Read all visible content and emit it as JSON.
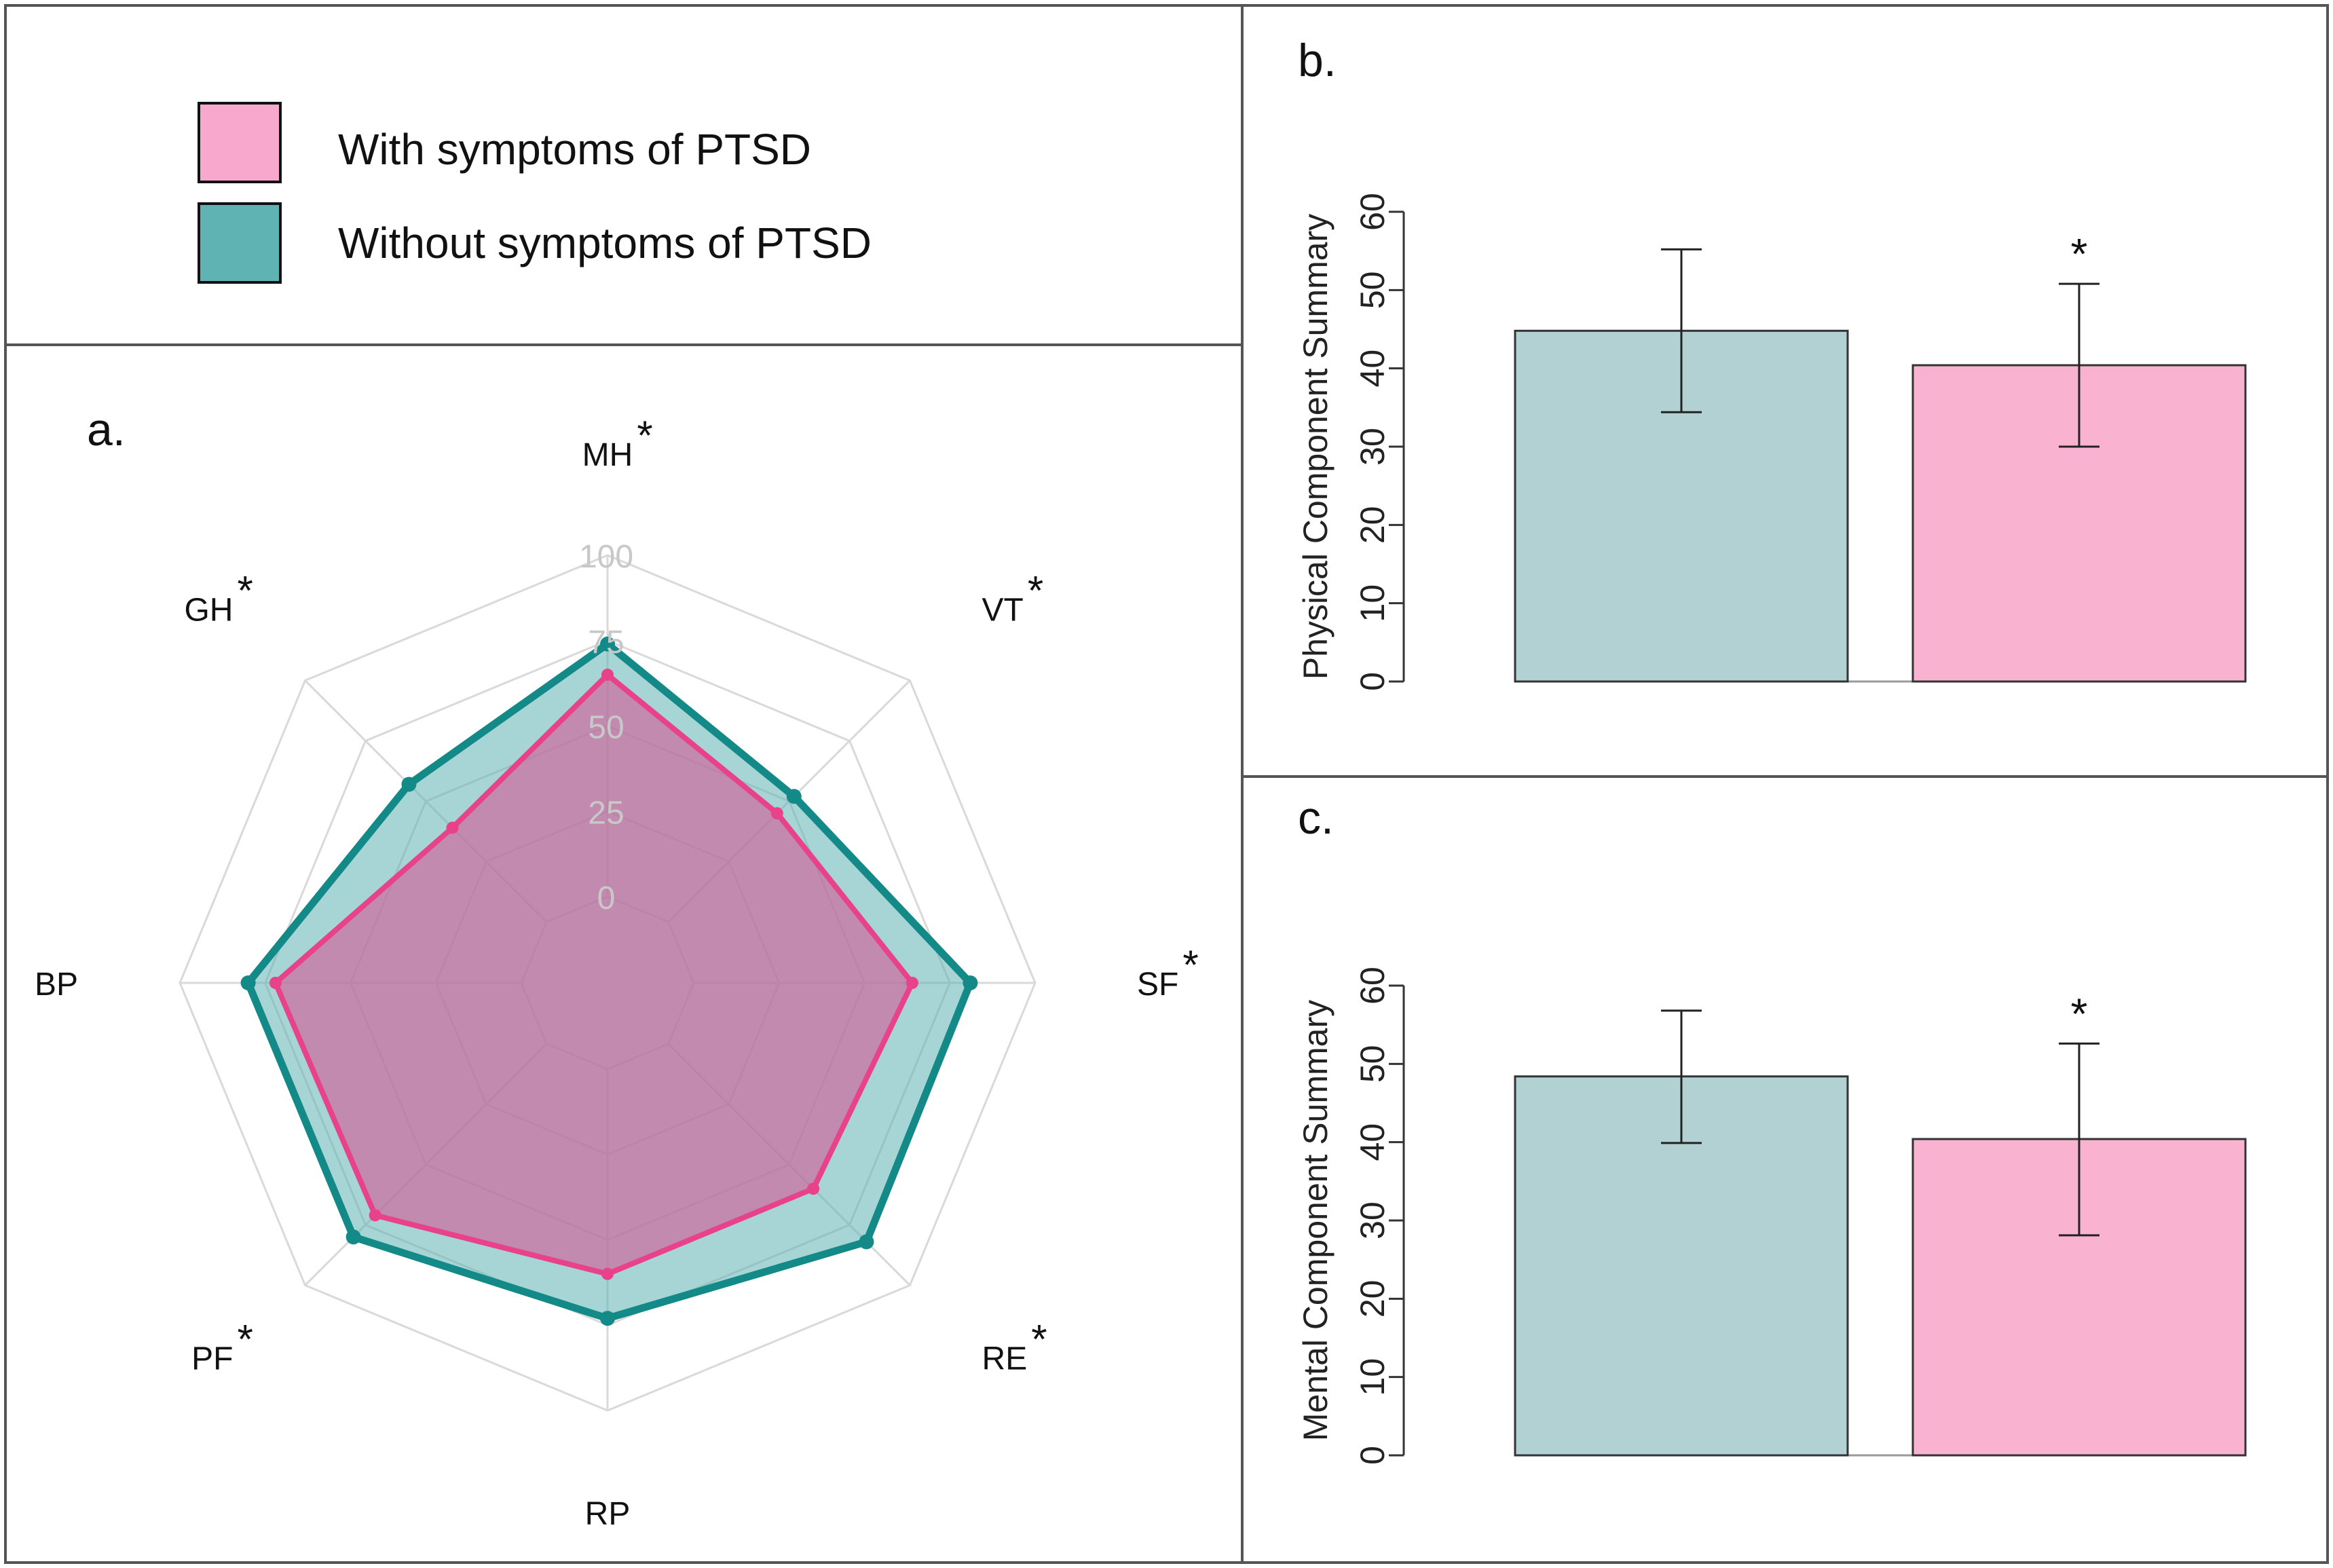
{
  "legend": {
    "entries": [
      {
        "label": "With symptoms of PTSD",
        "color": "#f7a8cc"
      },
      {
        "label": "Without symptoms of PTSD",
        "color": "#5fb3b3"
      }
    ]
  },
  "colors": {
    "ptsd_fill": "#d25c96",
    "ptsd_line": "#e8428a",
    "no_ptsd_fill": "#5fb3b3",
    "no_ptsd_line": "#138a87",
    "bar_no_ptsd": "#b2d1d2",
    "bar_ptsd": "#f9b3d1",
    "grid": "#d9d9d9"
  },
  "chart_data": [
    {
      "type": "radar",
      "panel_label": "a.",
      "axes": [
        "MH",
        "VT",
        "SF",
        "RE",
        "RP",
        "PF",
        "BP",
        "GH"
      ],
      "significant": [
        "*",
        "*",
        "*",
        "*",
        "",
        "*",
        "",
        "*"
      ],
      "ticks": [
        "0",
        "25",
        "50",
        "75",
        "100"
      ],
      "range": [
        0,
        100
      ],
      "series": [
        {
          "name": "Without symptoms of PTSD",
          "values": [
            74,
            52,
            81,
            82,
            73,
            80,
            80,
            57
          ]
        },
        {
          "name": "With symptoms of PTSD",
          "values": [
            65,
            45,
            64,
            60,
            60,
            71,
            72,
            39
          ]
        }
      ]
    },
    {
      "type": "bar",
      "panel_label": "b.",
      "ylabel": "Physical Component Summary",
      "yticks": [
        "0",
        "10",
        "20",
        "30",
        "40",
        "50",
        "60"
      ],
      "ylim": [
        0,
        60
      ],
      "categories": [
        "Without symptoms of PTSD",
        "With symptoms of PTSD"
      ],
      "values": [
        44.8,
        40.4
      ],
      "errors": [
        [
          34.4,
          55.2
        ],
        [
          30.0,
          50.8
        ]
      ],
      "annotations": [
        "",
        "*"
      ]
    },
    {
      "type": "bar",
      "panel_label": "c.",
      "ylabel": "Mental Component Summary",
      "yticks": [
        "0",
        "10",
        "20",
        "30",
        "40",
        "50",
        "60"
      ],
      "ylim": [
        0,
        60
      ],
      "categories": [
        "Without symptoms of PTSD",
        "With symptoms of PTSD"
      ],
      "values": [
        48.4,
        40.4
      ],
      "errors": [
        [
          39.9,
          56.8
        ],
        [
          28.1,
          52.6
        ]
      ],
      "annotations": [
        "",
        "*"
      ]
    }
  ]
}
